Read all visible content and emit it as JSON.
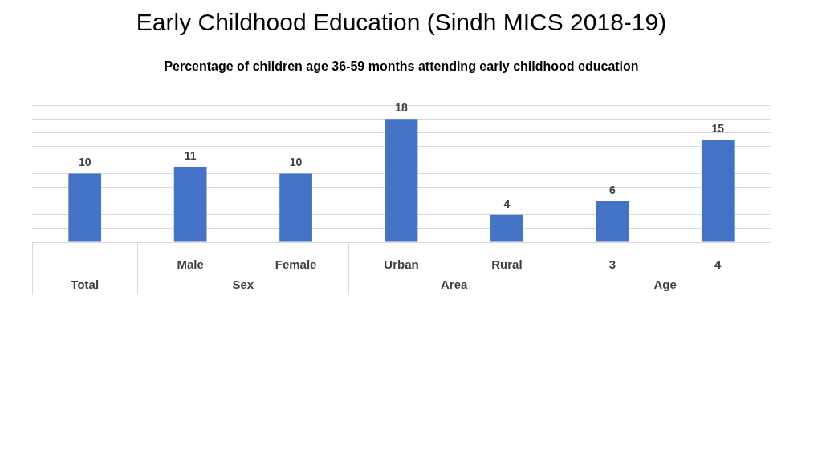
{
  "chart_data": {
    "type": "bar",
    "title": "Early Childhood Education (Sindh MICS 2018-19)",
    "subtitle": "Percentage of children age 36-59 months attending early childhood education",
    "categories": [
      null,
      "Male",
      "Female",
      "Urban",
      "Rural",
      "3",
      "4"
    ],
    "category_groups": [
      "Total",
      "Sex",
      "Sex",
      "Area",
      "Area",
      "Age",
      "Age"
    ],
    "values": [
      10,
      11,
      10,
      18,
      4,
      6,
      15
    ],
    "color": "#4472c4",
    "ylim": [
      0,
      20
    ],
    "yticks": [
      0,
      2,
      4,
      6,
      8,
      10,
      12,
      14,
      16,
      18,
      20
    ],
    "grid": true,
    "data_labels": true,
    "tick_labels": "x"
  }
}
